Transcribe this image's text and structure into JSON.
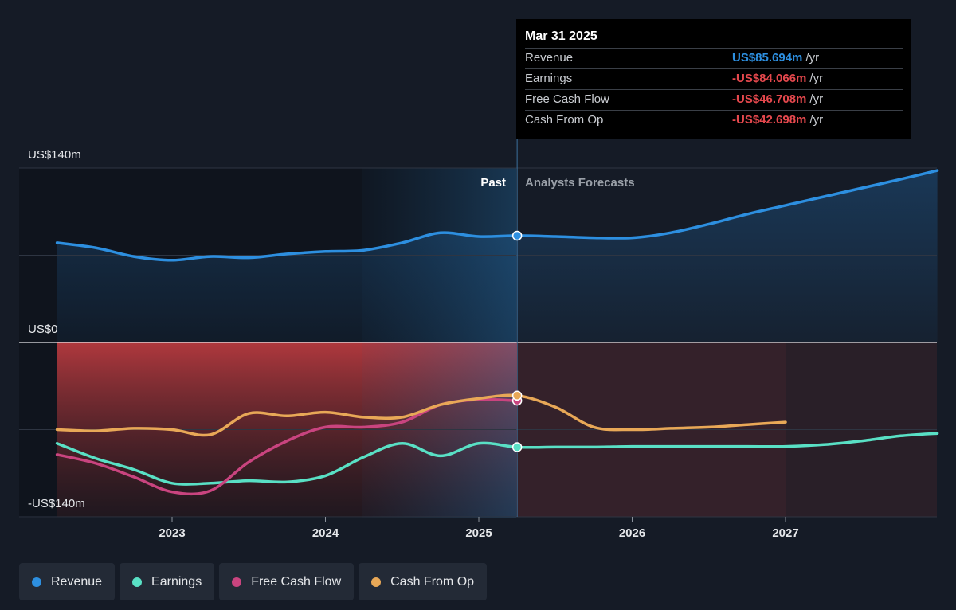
{
  "chart_data": {
    "type": "line",
    "y_labels": {
      "top": "US$140m",
      "zero": "US$0",
      "bottom": "-US$140m"
    },
    "ylim": [
      -140,
      140
    ],
    "x_ticks": [
      "2023",
      "2024",
      "2025",
      "2026",
      "2027"
    ],
    "divider": {
      "x": 2025.25,
      "past_label": "Past",
      "forecast_label": "Analysts Forecasts"
    },
    "series": [
      {
        "name": "Revenue",
        "color": "#2d8fe0",
        "points": [
          [
            2022.25,
            80
          ],
          [
            2022.5,
            76
          ],
          [
            2022.75,
            69
          ],
          [
            2023.0,
            66
          ],
          [
            2023.25,
            69
          ],
          [
            2023.5,
            68
          ],
          [
            2023.75,
            71
          ],
          [
            2024.0,
            73
          ],
          [
            2024.25,
            74
          ],
          [
            2024.5,
            80
          ],
          [
            2024.75,
            88
          ],
          [
            2025.0,
            85
          ],
          [
            2025.25,
            85.694
          ],
          [
            2025.5,
            85
          ],
          [
            2025.75,
            84
          ],
          [
            2026.0,
            84
          ],
          [
            2026.25,
            88
          ],
          [
            2026.5,
            95
          ],
          [
            2026.75,
            103
          ],
          [
            2027.0,
            110
          ],
          [
            2027.25,
            117
          ],
          [
            2027.5,
            124
          ],
          [
            2027.75,
            131
          ],
          [
            2027.99,
            138
          ]
        ]
      },
      {
        "name": "Earnings",
        "color": "#59e0c5",
        "points": [
          [
            2022.25,
            -81
          ],
          [
            2022.5,
            -93
          ],
          [
            2022.75,
            -102
          ],
          [
            2023.0,
            -113
          ],
          [
            2023.25,
            -113
          ],
          [
            2023.5,
            -111
          ],
          [
            2023.75,
            -112
          ],
          [
            2024.0,
            -107
          ],
          [
            2024.25,
            -92
          ],
          [
            2024.5,
            -81
          ],
          [
            2024.75,
            -91
          ],
          [
            2025.0,
            -81
          ],
          [
            2025.25,
            -84.066
          ],
          [
            2025.5,
            -84
          ],
          [
            2025.75,
            -84
          ],
          [
            2026.0,
            -83.5
          ],
          [
            2026.25,
            -83.5
          ],
          [
            2026.5,
            -83.5
          ],
          [
            2026.75,
            -83.5
          ],
          [
            2027.0,
            -83.5
          ],
          [
            2027.25,
            -82
          ],
          [
            2027.5,
            -79
          ],
          [
            2027.75,
            -75
          ],
          [
            2027.99,
            -73
          ]
        ]
      },
      {
        "name": "Free Cash Flow",
        "color": "#c9447f",
        "points": [
          [
            2022.25,
            -90
          ],
          [
            2022.5,
            -97
          ],
          [
            2022.75,
            -108
          ],
          [
            2023.0,
            -120
          ],
          [
            2023.25,
            -119
          ],
          [
            2023.5,
            -96
          ],
          [
            2023.75,
            -79
          ],
          [
            2024.0,
            -68
          ],
          [
            2024.25,
            -68
          ],
          [
            2024.5,
            -64
          ],
          [
            2024.75,
            -50
          ],
          [
            2025.0,
            -46
          ],
          [
            2025.25,
            -46.708
          ]
        ]
      },
      {
        "name": "Cash From Op",
        "color": "#e8a857",
        "points": [
          [
            2022.25,
            -70
          ],
          [
            2022.5,
            -71
          ],
          [
            2022.75,
            -69
          ],
          [
            2023.0,
            -70
          ],
          [
            2023.25,
            -74
          ],
          [
            2023.5,
            -57
          ],
          [
            2023.75,
            -59
          ],
          [
            2024.0,
            -56
          ],
          [
            2024.25,
            -60
          ],
          [
            2024.5,
            -60
          ],
          [
            2024.75,
            -50
          ],
          [
            2025.0,
            -45
          ],
          [
            2025.25,
            -42.698
          ],
          [
            2025.5,
            -52
          ],
          [
            2025.75,
            -68
          ],
          [
            2026.0,
            -70
          ],
          [
            2026.25,
            -69
          ],
          [
            2026.5,
            -68
          ],
          [
            2026.75,
            -66
          ],
          [
            2027.0,
            -64
          ]
        ]
      }
    ]
  },
  "tooltip": {
    "date": "Mar 31 2025",
    "rows": [
      {
        "name": "Revenue",
        "value": "US$85.694m",
        "unit": "/yr",
        "color": "#2d8fe0"
      },
      {
        "name": "Earnings",
        "value": "-US$84.066m",
        "unit": "/yr",
        "color": "#e5484d"
      },
      {
        "name": "Free Cash Flow",
        "value": "-US$46.708m",
        "unit": "/yr",
        "color": "#e5484d"
      },
      {
        "name": "Cash From Op",
        "value": "-US$42.698m",
        "unit": "/yr",
        "color": "#e5484d"
      }
    ]
  },
  "legend": [
    {
      "label": "Revenue",
      "color": "#2d8fe0"
    },
    {
      "label": "Earnings",
      "color": "#59e0c5"
    },
    {
      "label": "Free Cash Flow",
      "color": "#c9447f"
    },
    {
      "label": "Cash From Op",
      "color": "#e8a857"
    }
  ]
}
